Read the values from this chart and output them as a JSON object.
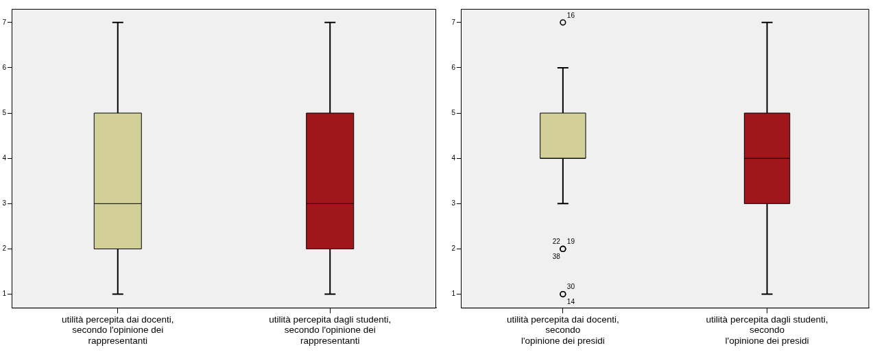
{
  "chart_data": [
    {
      "type": "box",
      "categories": [
        "utilità percepita dai docenti,\nsecondo l'opinione dei\nrappresentanti",
        "utilità percepita dagli studenti,\nsecondo l'opinione dei\nrappresentanti"
      ],
      "boxes": [
        {
          "low": 1,
          "q1": 2,
          "median": 3,
          "q3": 5,
          "high": 7
        },
        {
          "low": 1,
          "q1": 2,
          "median": 3,
          "q3": 5,
          "high": 7
        }
      ],
      "colors": [
        "#d3cf98",
        "#a0161a"
      ],
      "ylim": [
        0.7,
        7.3
      ],
      "yticks": [
        1,
        2,
        3,
        4,
        5,
        6,
        7
      ]
    },
    {
      "type": "box",
      "categories": [
        "utilità percepita dai docenti,\nsecondo\nl'opinione dei presidi",
        "utilità percepita dagli studenti,\nsecondo\nl'opinione dei presidi"
      ],
      "boxes": [
        {
          "low": 3,
          "q1": 4,
          "median": 4,
          "q3": 5,
          "high": 6,
          "outliers": [
            7,
            2,
            2,
            2,
            1,
            1
          ]
        },
        {
          "low": 1,
          "q1": 3,
          "median": 4,
          "q3": 5,
          "high": 7
        }
      ],
      "colors": [
        "#d3cf98",
        "#a0161a"
      ],
      "marker": "circle",
      "ylim": [
        0.7,
        7.3
      ],
      "yticks": [
        1,
        2,
        3,
        4,
        5,
        6,
        7
      ],
      "annotations": [
        "16",
        "22",
        "19",
        "38",
        "30",
        "14"
      ]
    }
  ]
}
